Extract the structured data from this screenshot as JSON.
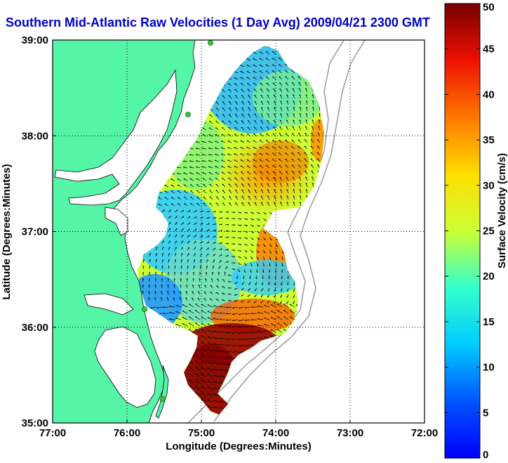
{
  "title": "Southern Mid-Atlantic Raw Velocities (1 Day Avg) 2009/04/21 2300 GMT",
  "x_axis": {
    "label": "Longitude (Degrees:Minutes)",
    "ticks": [
      "77:00",
      "76:00",
      "75:00",
      "74:00",
      "73:00",
      "72:00"
    ],
    "range": [
      -77,
      -72
    ]
  },
  "y_axis": {
    "label": "Latitude (Degrees:Minutes)",
    "ticks": [
      "39:00",
      "38:00",
      "37:00",
      "36:00",
      "35:00"
    ],
    "range": [
      35,
      39
    ]
  },
  "colorbar": {
    "label": "Surface Velocity (cm/s)",
    "ticks": [
      "0",
      "5",
      "10",
      "15",
      "20",
      "25",
      "30",
      "35",
      "40",
      "45",
      "50"
    ],
    "range": [
      0,
      50
    ],
    "colormap": "jet"
  },
  "colors": {
    "land": "#55f5a8",
    "ocean": "#ffffff",
    "coast_outline": "#000000",
    "bathymetry": "#999999",
    "title": "#0000cc",
    "station": "#33cc33"
  },
  "grid": true
}
